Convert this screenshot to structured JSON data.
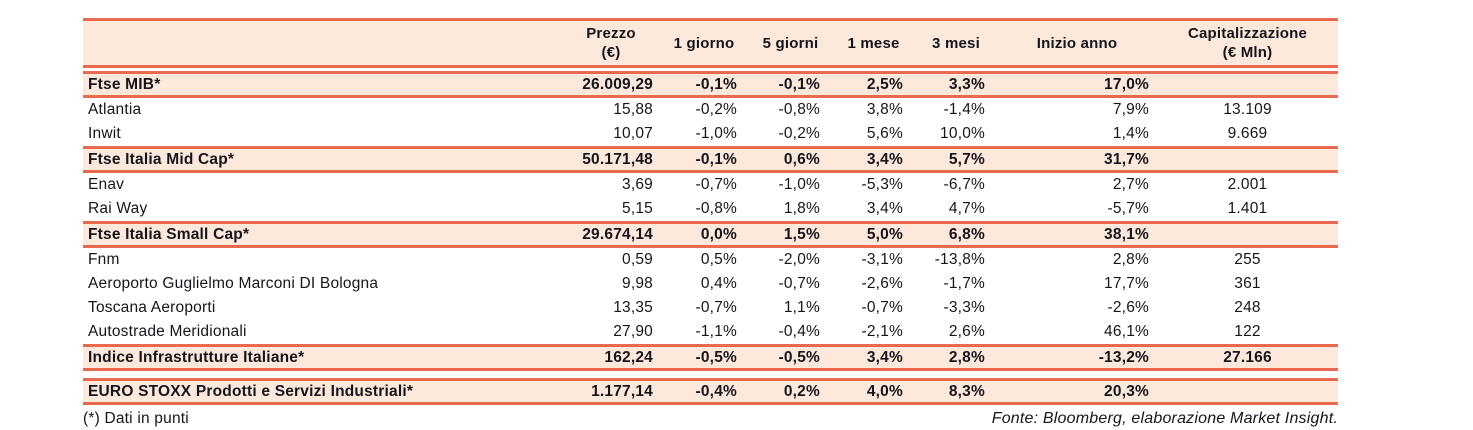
{
  "table": {
    "columns": [
      "",
      "Prezzo\n(€)",
      "1 giorno",
      "5 giorni",
      "1 mese",
      "3 mesi",
      "Inizio anno",
      "Capitalizzazione\n(€ Mln)"
    ],
    "rows": [
      {
        "is_index": true,
        "gap_before": false,
        "name": "Ftse MIB*",
        "prezzo": "26.009,29",
        "g1": "-0,1%",
        "g5": "-0,1%",
        "m1": "2,5%",
        "m3": "3,3%",
        "ytd": "17,0%",
        "cap": ""
      },
      {
        "is_index": false,
        "gap_before": false,
        "name": "Atlantia",
        "prezzo": "15,88",
        "g1": "-0,2%",
        "g5": "-0,8%",
        "m1": "3,8%",
        "m3": "-1,4%",
        "ytd": "7,9%",
        "cap": "13.109"
      },
      {
        "is_index": false,
        "gap_before": false,
        "name": "Inwit",
        "prezzo": "10,07",
        "g1": "-1,0%",
        "g5": "-0,2%",
        "m1": "5,6%",
        "m3": "10,0%",
        "ytd": "1,4%",
        "cap": "9.669"
      },
      {
        "is_index": true,
        "gap_before": false,
        "name": "Ftse Italia Mid Cap*",
        "prezzo": "50.171,48",
        "g1": "-0,1%",
        "g5": "0,6%",
        "m1": "3,4%",
        "m3": "5,7%",
        "ytd": "31,7%",
        "cap": ""
      },
      {
        "is_index": false,
        "gap_before": false,
        "name": "Enav",
        "prezzo": "3,69",
        "g1": "-0,7%",
        "g5": "-1,0%",
        "m1": "-5,3%",
        "m3": "-6,7%",
        "ytd": "2,7%",
        "cap": "2.001"
      },
      {
        "is_index": false,
        "gap_before": false,
        "name": "Rai Way",
        "prezzo": "5,15",
        "g1": "-0,8%",
        "g5": "1,8%",
        "m1": "3,4%",
        "m3": "4,7%",
        "ytd": "-5,7%",
        "cap": "1.401"
      },
      {
        "is_index": true,
        "gap_before": false,
        "name": "Ftse Italia Small Cap*",
        "prezzo": "29.674,14",
        "g1": "0,0%",
        "g5": "1,5%",
        "m1": "5,0%",
        "m3": "6,8%",
        "ytd": "38,1%",
        "cap": ""
      },
      {
        "is_index": false,
        "gap_before": false,
        "name": "Fnm",
        "prezzo": "0,59",
        "g1": "0,5%",
        "g5": "-2,0%",
        "m1": "-3,1%",
        "m3": "-13,8%",
        "ytd": "2,8%",
        "cap": "255"
      },
      {
        "is_index": false,
        "gap_before": false,
        "name": "Aeroporto Guglielmo Marconi DI Bologna",
        "prezzo": "9,98",
        "g1": "0,4%",
        "g5": "-0,7%",
        "m1": "-2,6%",
        "m3": "-1,7%",
        "ytd": "17,7%",
        "cap": "361"
      },
      {
        "is_index": false,
        "gap_before": false,
        "name": "Toscana Aeroporti",
        "prezzo": "13,35",
        "g1": "-0,7%",
        "g5": "1,1%",
        "m1": "-0,7%",
        "m3": "-3,3%",
        "ytd": "-2,6%",
        "cap": "248"
      },
      {
        "is_index": false,
        "gap_before": false,
        "name": "Autostrade Meridionali",
        "prezzo": "27,90",
        "g1": "-1,1%",
        "g5": "-0,4%",
        "m1": "-2,1%",
        "m3": "2,6%",
        "ytd": "46,1%",
        "cap": "122"
      },
      {
        "is_index": true,
        "gap_before": false,
        "name": "Indice Infrastrutture Italiane*",
        "prezzo": "162,24",
        "g1": "-0,5%",
        "g5": "-0,5%",
        "m1": "3,4%",
        "m3": "2,8%",
        "ytd": "-13,2%",
        "cap": "27.166"
      },
      {
        "is_index": true,
        "gap_before": true,
        "name": "EURO STOXX Prodotti e Servizi Industriali*",
        "prezzo": "1.177,14",
        "g1": "-0,4%",
        "g5": "0,2%",
        "m1": "4,0%",
        "m3": "8,3%",
        "ytd": "20,3%",
        "cap": ""
      }
    ]
  },
  "footer": {
    "note": "(*) Dati in punti",
    "source": "Fonte: Bloomberg, elaborazione Market Insight."
  },
  "colors": {
    "accent": "#EA6A50",
    "band_bg": "#FCE9DB",
    "text": "#15151E"
  }
}
